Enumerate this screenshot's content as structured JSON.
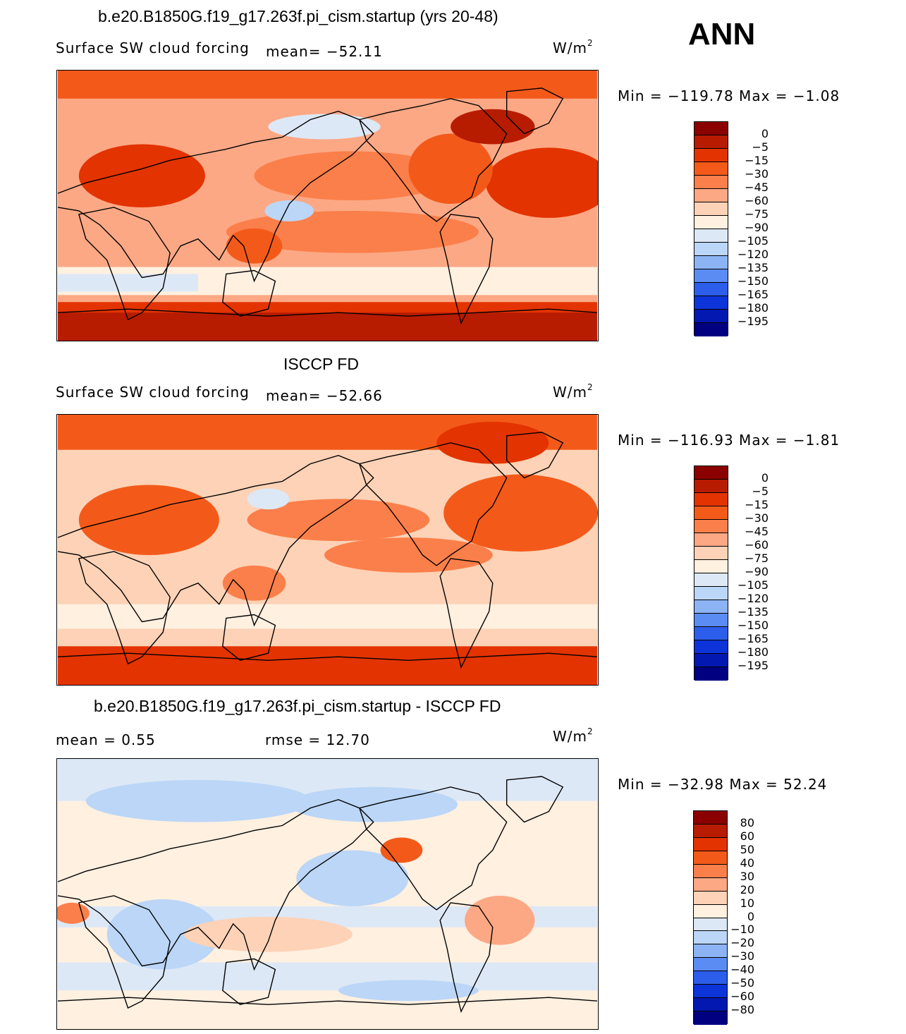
{
  "season": "ANN",
  "units": "W/m",
  "units_exp": "2",
  "palette_main": [
    "#8b0000",
    "#b71c00",
    "#e33300",
    "#f35a1a",
    "#fb7f4a",
    "#fca885",
    "#fdd2b6",
    "#fff0e0",
    "#dde8f6",
    "#bbd6f7",
    "#8cb4f5",
    "#5b8cf3",
    "#2d5eeb",
    "#0c34d8",
    "#0218b0",
    "#000080"
  ],
  "palette_diff": [
    "#8b0000",
    "#b71c00",
    "#e33300",
    "#f35a1a",
    "#fb7f4a",
    "#fca885",
    "#fdd2b6",
    "#fff0e0",
    "#dde8f6",
    "#bbd6f7",
    "#8cb4f5",
    "#5b8cf3",
    "#2d5eeb",
    "#0c34d8",
    "#0218b0",
    "#000080"
  ],
  "panels": [
    {
      "title": "b.e20.B1850G.f19_g17.263f.pi_cism.startup (yrs 20-48)",
      "variable": "Surface SW cloud forcing",
      "mean_label": "mean=",
      "mean_value": "−52.11",
      "min_max": "Min  =  −119.78  Max  =    −1.08",
      "levels": [
        "0",
        "−5",
        "−15",
        "−30",
        "−45",
        "−60",
        "−75",
        "−90",
        "−105",
        "−120",
        "−135",
        "−150",
        "−165",
        "−180",
        "−195"
      ]
    },
    {
      "title": "ISCCP FD",
      "variable": "Surface SW cloud forcing",
      "mean_label": "mean=",
      "mean_value": "−52.66",
      "min_max": "Min  =  −116.93  Max  =    −1.81",
      "levels": [
        "0",
        "−5",
        "−15",
        "−30",
        "−45",
        "−60",
        "−75",
        "−90",
        "−105",
        "−120",
        "−135",
        "−150",
        "−165",
        "−180",
        "−195"
      ]
    },
    {
      "title": "b.e20.B1850G.f19_g17.263f.pi_cism.startup - ISCCP FD",
      "mean_label": "mean  =",
      "mean_value": "0.55",
      "rmse_label": "rmse  =",
      "rmse_value": "12.70",
      "min_max": "Min  =  −32.98  Max  =    52.24",
      "levels": [
        "80",
        "60",
        "50",
        "40",
        "30",
        "20",
        "10",
        "0",
        "−10",
        "−20",
        "−30",
        "−40",
        "−50",
        "−60",
        "−80"
      ]
    }
  ]
}
